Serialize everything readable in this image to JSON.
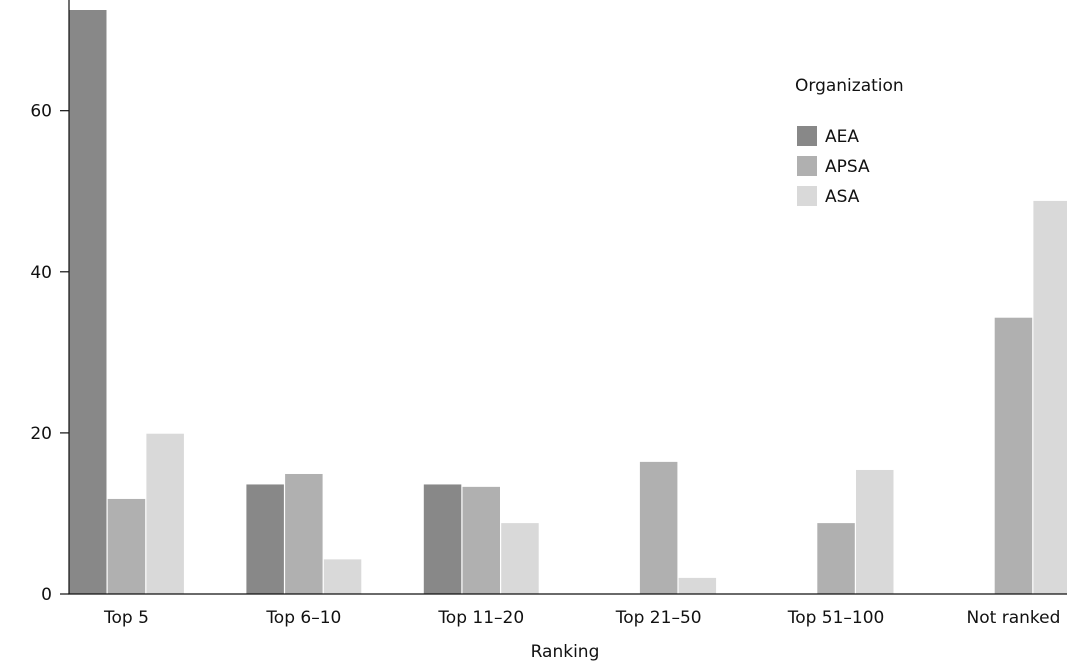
{
  "chart_data": {
    "type": "bar",
    "title": "",
    "xlabel": "Ranking",
    "ylabel": "",
    "ylim": [
      0,
      72.5
    ],
    "yticks": [
      0,
      20,
      40,
      60
    ],
    "grid": false,
    "legend_position": "top-right",
    "legend_title": "Organization",
    "categories": [
      "Top 5",
      "Top 6–10",
      "Top 11–20",
      "Top 21–50",
      "Top 51–100",
      "Not ranked"
    ],
    "series": [
      {
        "name": "AEA",
        "color": "#888888",
        "values": [
          72.5,
          13.6,
          13.6,
          0,
          0,
          0
        ]
      },
      {
        "name": "APSA",
        "color": "#b0b0b0",
        "values": [
          11.8,
          14.9,
          13.3,
          16.4,
          8.8,
          34.3
        ]
      },
      {
        "name": "ASA",
        "color": "#d9d9d9",
        "values": [
          19.9,
          4.3,
          8.8,
          2.0,
          15.4,
          48.8
        ]
      }
    ]
  }
}
